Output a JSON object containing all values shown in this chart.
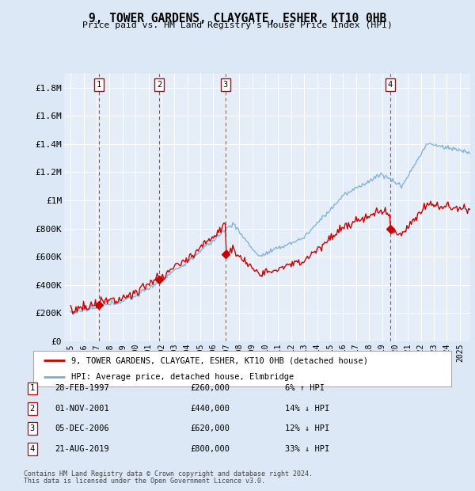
{
  "title": "9, TOWER GARDENS, CLAYGATE, ESHER, KT10 0HB",
  "subtitle": "Price paid vs. HM Land Registry's House Price Index (HPI)",
  "footer1": "Contains HM Land Registry data © Crown copyright and database right 2024.",
  "footer2": "This data is licensed under the Open Government Licence v3.0.",
  "legend_property": "9, TOWER GARDENS, CLAYGATE, ESHER, KT10 0HB (detached house)",
  "legend_hpi": "HPI: Average price, detached house, Elmbridge",
  "transactions": [
    {
      "num": 1,
      "date": "28-FEB-1997",
      "price": 260000,
      "pct": "6%",
      "dir": "↑"
    },
    {
      "num": 2,
      "date": "01-NOV-2001",
      "price": 440000,
      "pct": "14%",
      "dir": "↓"
    },
    {
      "num": 3,
      "date": "05-DEC-2006",
      "price": 620000,
      "pct": "12%",
      "dir": "↓"
    },
    {
      "num": 4,
      "date": "21-AUG-2019",
      "price": 800000,
      "pct": "33%",
      "dir": "↓"
    }
  ],
  "transaction_years": [
    1997.16,
    2001.83,
    2006.92,
    2019.64
  ],
  "transaction_prices": [
    260000,
    440000,
    620000,
    800000
  ],
  "hpi_color": "#7aadd4",
  "property_color": "#cc0000",
  "vline_color": "#cc0000",
  "bg_color": "#dce8f5",
  "plot_bg": "#e4edf8",
  "ylim": [
    0,
    1900000
  ],
  "yticks": [
    0,
    200000,
    400000,
    600000,
    800000,
    1000000,
    1200000,
    1400000,
    1600000,
    1800000
  ],
  "ylabel_vals": [
    "£0",
    "£200K",
    "£400K",
    "£600K",
    "£800K",
    "£1M",
    "£1.2M",
    "£1.4M",
    "£1.6M",
    "£1.8M"
  ],
  "xlim_start": 1994.5,
  "xlim_end": 2025.8,
  "xtick_years": [
    1995,
    1996,
    1997,
    1998,
    1999,
    2000,
    2001,
    2002,
    2003,
    2004,
    2005,
    2006,
    2007,
    2008,
    2009,
    2010,
    2011,
    2012,
    2013,
    2014,
    2015,
    2016,
    2017,
    2018,
    2019,
    2020,
    2021,
    2022,
    2023,
    2024,
    2025
  ]
}
